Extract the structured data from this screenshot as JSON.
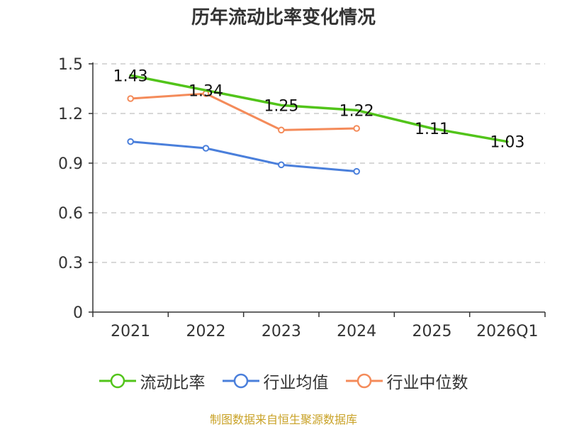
{
  "title": "历年流动比率变化情况",
  "source": "制图数据来自恒生聚源数据库",
  "chart_data": {
    "type": "line",
    "title": "历年流动比率变化情况",
    "categories": [
      "2021",
      "2022",
      "2023",
      "2024",
      "2025",
      "2026Q1"
    ],
    "ylim": [
      0,
      1.5
    ],
    "yticks": [
      0,
      0.3,
      0.6,
      0.9,
      1.2,
      1.5
    ],
    "ytick_labels": [
      "0",
      "0.3",
      "0.6",
      "0.9",
      "1.2",
      "1.5"
    ],
    "grid": true,
    "legend": "bottom",
    "series": [
      {
        "name": "流动比率",
        "color": "#52c41a",
        "values": [
          1.43,
          1.34,
          1.25,
          1.22,
          1.11,
          1.03
        ],
        "labels": [
          "1.43",
          "1.34",
          "1.25",
          "1.22",
          "1.11",
          "1.03"
        ],
        "markers": false
      },
      {
        "name": "行业均值",
        "color": "#4a7fdb",
        "values": [
          1.03,
          0.99,
          0.89,
          0.85,
          null,
          null
        ],
        "markers": true
      },
      {
        "name": "行业中位数",
        "color": "#f48b5a",
        "values": [
          1.29,
          1.32,
          1.1,
          1.11,
          null,
          null
        ],
        "markers": true
      }
    ]
  }
}
